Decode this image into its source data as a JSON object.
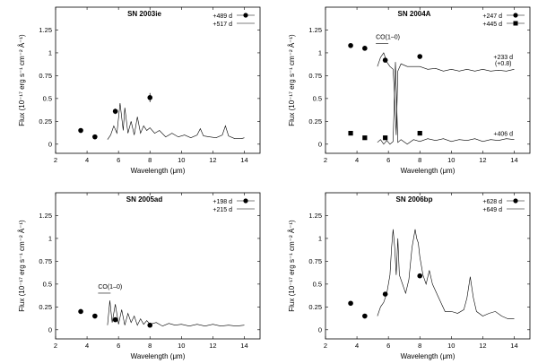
{
  "figure": {
    "xlabel": "Wavelength (μm)",
    "ylabel": "Flux (10⁻¹⁷ erg s⁻¹ cm⁻² Å⁻¹)"
  },
  "chart_data": [
    {
      "type": "scatter+line",
      "title": "SN 2003ie",
      "xlim": [
        2,
        15
      ],
      "ylim": [
        -0.1,
        1.5
      ],
      "xticks": [
        "2",
        "4",
        "6",
        "8",
        "10",
        "12",
        "14"
      ],
      "yticks": [
        "0",
        "0.25",
        "0.5",
        "0.75",
        "1",
        "1.25"
      ],
      "legend": [
        {
          "label": "+489 d",
          "marker": "circle"
        },
        {
          "label": "+517 d",
          "marker": "line"
        }
      ],
      "points": [
        {
          "x": 3.6,
          "y": 0.15
        },
        {
          "x": 4.5,
          "y": 0.08
        },
        {
          "x": 5.8,
          "y": 0.36,
          "err": 0.03
        },
        {
          "x": 8.0,
          "y": 0.51,
          "err": 0.05
        }
      ],
      "spectrum": [
        [
          5.3,
          0.05
        ],
        [
          5.5,
          0.1
        ],
        [
          5.7,
          0.2
        ],
        [
          5.9,
          0.12
        ],
        [
          6.1,
          0.45
        ],
        [
          6.3,
          0.15
        ],
        [
          6.4,
          0.4
        ],
        [
          6.6,
          0.12
        ],
        [
          6.8,
          0.25
        ],
        [
          7.0,
          0.1
        ],
        [
          7.2,
          0.3
        ],
        [
          7.4,
          0.12
        ],
        [
          7.6,
          0.2
        ],
        [
          7.8,
          0.15
        ],
        [
          8.0,
          0.18
        ],
        [
          8.3,
          0.12
        ],
        [
          8.6,
          0.15
        ],
        [
          9.0,
          0.08
        ],
        [
          9.4,
          0.12
        ],
        [
          9.8,
          0.08
        ],
        [
          10.2,
          0.1
        ],
        [
          10.6,
          0.07
        ],
        [
          11.0,
          0.1
        ],
        [
          11.2,
          0.17
        ],
        [
          11.4,
          0.09
        ],
        [
          11.8,
          0.08
        ],
        [
          12.2,
          0.07
        ],
        [
          12.6,
          0.1
        ],
        [
          12.8,
          0.2
        ],
        [
          13.0,
          0.09
        ],
        [
          13.4,
          0.06
        ],
        [
          13.8,
          0.06
        ],
        [
          14.0,
          0.07
        ]
      ],
      "annotations": []
    },
    {
      "type": "scatter+line",
      "title": "SN 2004A",
      "xlim": [
        2,
        15
      ],
      "ylim": [
        -0.1,
        1.5
      ],
      "xticks": [
        "2",
        "4",
        "6",
        "8",
        "10",
        "12",
        "14"
      ],
      "yticks": [
        "0",
        "0.25",
        "0.5",
        "0.75",
        "1",
        "1.25"
      ],
      "legend": [
        {
          "label": "+247 d",
          "marker": "circle"
        },
        {
          "label": "+445 d",
          "marker": "square"
        }
      ],
      "points": [
        {
          "x": 3.6,
          "y": 1.08
        },
        {
          "x": 4.5,
          "y": 1.05
        },
        {
          "x": 5.8,
          "y": 0.92
        },
        {
          "x": 8.0,
          "y": 0.96
        }
      ],
      "points2": [
        {
          "x": 3.6,
          "y": 0.12
        },
        {
          "x": 4.5,
          "y": 0.07
        },
        {
          "x": 5.8,
          "y": 0.07
        },
        {
          "x": 8.0,
          "y": 0.12
        }
      ],
      "spectrum": [
        [
          5.3,
          0.85
        ],
        [
          5.5,
          0.95
        ],
        [
          5.7,
          1.0
        ],
        [
          5.9,
          0.9
        ],
        [
          6.1,
          0.85
        ],
        [
          6.3,
          0.82
        ],
        [
          6.4,
          0.5
        ],
        [
          6.5,
          0.1
        ],
        [
          6.6,
          0.8
        ],
        [
          6.8,
          0.88
        ],
        [
          7.2,
          0.85
        ],
        [
          7.6,
          0.85
        ],
        [
          8.0,
          0.85
        ],
        [
          8.5,
          0.82
        ],
        [
          9.0,
          0.83
        ],
        [
          9.5,
          0.8
        ],
        [
          10.0,
          0.82
        ],
        [
          10.5,
          0.8
        ],
        [
          11.0,
          0.82
        ],
        [
          11.5,
          0.8
        ],
        [
          12.0,
          0.82
        ],
        [
          12.5,
          0.8
        ],
        [
          13.0,
          0.81
        ],
        [
          13.5,
          0.8
        ],
        [
          14.0,
          0.82
        ]
      ],
      "spectrum2": [
        [
          5.3,
          0.02
        ],
        [
          5.5,
          0.05
        ],
        [
          5.7,
          0.0
        ],
        [
          5.9,
          0.04
        ],
        [
          6.1,
          0.0
        ],
        [
          6.3,
          0.03
        ],
        [
          6.45,
          0.9
        ],
        [
          6.6,
          0.02
        ],
        [
          6.8,
          0.05
        ],
        [
          7.2,
          0.0
        ],
        [
          7.6,
          0.05
        ],
        [
          8.0,
          0.03
        ],
        [
          8.5,
          0.06
        ],
        [
          9.0,
          0.04
        ],
        [
          9.5,
          0.06
        ],
        [
          10.0,
          0.03
        ],
        [
          10.5,
          0.05
        ],
        [
          11.0,
          0.04
        ],
        [
          11.5,
          0.06
        ],
        [
          12.0,
          0.03
        ],
        [
          12.5,
          0.05
        ],
        [
          13.0,
          0.04
        ],
        [
          13.5,
          0.06
        ],
        [
          14.0,
          0.05
        ]
      ],
      "annotations": [
        {
          "text": "CO(1–0)",
          "x": 5.2,
          "y": 1.15
        },
        {
          "text": "+233 d",
          "x": 13.3,
          "y": 0.93
        },
        {
          "text": "(+0.8)",
          "x": 13.3,
          "y": 0.86
        },
        {
          "text": "+406 d",
          "x": 13.3,
          "y": 0.09
        }
      ]
    },
    {
      "type": "scatter+line",
      "title": "SN 2005ad",
      "xlim": [
        2,
        15
      ],
      "ylim": [
        -0.1,
        1.5
      ],
      "xticks": [
        "2",
        "4",
        "6",
        "8",
        "10",
        "12",
        "14"
      ],
      "yticks": [
        "0",
        "0.25",
        "0.5",
        "0.75",
        "1",
        "1.25"
      ],
      "legend": [
        {
          "label": "+198 d",
          "marker": "circle"
        },
        {
          "label": "+215 d",
          "marker": "line"
        }
      ],
      "points": [
        {
          "x": 3.6,
          "y": 0.2
        },
        {
          "x": 4.5,
          "y": 0.15
        },
        {
          "x": 5.8,
          "y": 0.11
        },
        {
          "x": 8.0,
          "y": 0.05
        }
      ],
      "spectrum": [
        [
          5.3,
          0.05
        ],
        [
          5.45,
          0.32
        ],
        [
          5.6,
          0.08
        ],
        [
          5.8,
          0.28
        ],
        [
          6.0,
          0.06
        ],
        [
          6.2,
          0.22
        ],
        [
          6.4,
          0.05
        ],
        [
          6.6,
          0.18
        ],
        [
          6.8,
          0.08
        ],
        [
          7.0,
          0.15
        ],
        [
          7.2,
          0.05
        ],
        [
          7.4,
          0.12
        ],
        [
          7.6,
          0.06
        ],
        [
          7.8,
          0.1
        ],
        [
          8.0,
          0.06
        ],
        [
          8.4,
          0.08
        ],
        [
          8.8,
          0.04
        ],
        [
          9.2,
          0.07
        ],
        [
          9.6,
          0.05
        ],
        [
          10.0,
          0.06
        ],
        [
          10.5,
          0.04
        ],
        [
          11.0,
          0.06
        ],
        [
          11.5,
          0.04
        ],
        [
          12.0,
          0.06
        ],
        [
          12.5,
          0.04
        ],
        [
          13.0,
          0.05
        ],
        [
          13.5,
          0.04
        ],
        [
          14.0,
          0.05
        ]
      ],
      "annotations": [
        {
          "text": "CO(1–0)",
          "x": 4.7,
          "y": 0.45
        }
      ]
    },
    {
      "type": "scatter+line",
      "title": "SN 2006bp",
      "xlim": [
        2,
        15
      ],
      "ylim": [
        -0.1,
        1.5
      ],
      "xticks": [
        "2",
        "4",
        "6",
        "8",
        "10",
        "12",
        "14"
      ],
      "yticks": [
        "0",
        "0.25",
        "0.5",
        "0.75",
        "1",
        "1.25"
      ],
      "legend": [
        {
          "label": "+628 d",
          "marker": "circle"
        },
        {
          "label": "+649 d",
          "marker": "line"
        }
      ],
      "points": [
        {
          "x": 3.6,
          "y": 0.29
        },
        {
          "x": 4.5,
          "y": 0.15
        },
        {
          "x": 5.8,
          "y": 0.39
        },
        {
          "x": 8.0,
          "y": 0.59
        }
      ],
      "spectrum": [
        [
          5.3,
          0.15
        ],
        [
          5.5,
          0.25
        ],
        [
          5.7,
          0.3
        ],
        [
          5.9,
          0.4
        ],
        [
          6.1,
          0.6
        ],
        [
          6.2,
          0.9
        ],
        [
          6.3,
          1.1
        ],
        [
          6.4,
          0.9
        ],
        [
          6.5,
          0.6
        ],
        [
          6.6,
          1.0
        ],
        [
          6.7,
          0.6
        ],
        [
          6.9,
          0.5
        ],
        [
          7.1,
          0.4
        ],
        [
          7.3,
          0.55
        ],
        [
          7.5,
          0.9
        ],
        [
          7.7,
          1.1
        ],
        [
          7.8,
          1.0
        ],
        [
          7.9,
          0.95
        ],
        [
          8.0,
          0.8
        ],
        [
          8.2,
          0.6
        ],
        [
          8.4,
          0.5
        ],
        [
          8.6,
          0.65
        ],
        [
          8.8,
          0.5
        ],
        [
          9.2,
          0.35
        ],
        [
          9.6,
          0.2
        ],
        [
          10.0,
          0.2
        ],
        [
          10.4,
          0.18
        ],
        [
          10.8,
          0.22
        ],
        [
          11.0,
          0.35
        ],
        [
          11.2,
          0.58
        ],
        [
          11.4,
          0.35
        ],
        [
          11.6,
          0.2
        ],
        [
          12.0,
          0.15
        ],
        [
          12.4,
          0.18
        ],
        [
          12.8,
          0.2
        ],
        [
          13.2,
          0.15
        ],
        [
          13.6,
          0.12
        ],
        [
          14.0,
          0.12
        ]
      ],
      "annotations": []
    }
  ]
}
